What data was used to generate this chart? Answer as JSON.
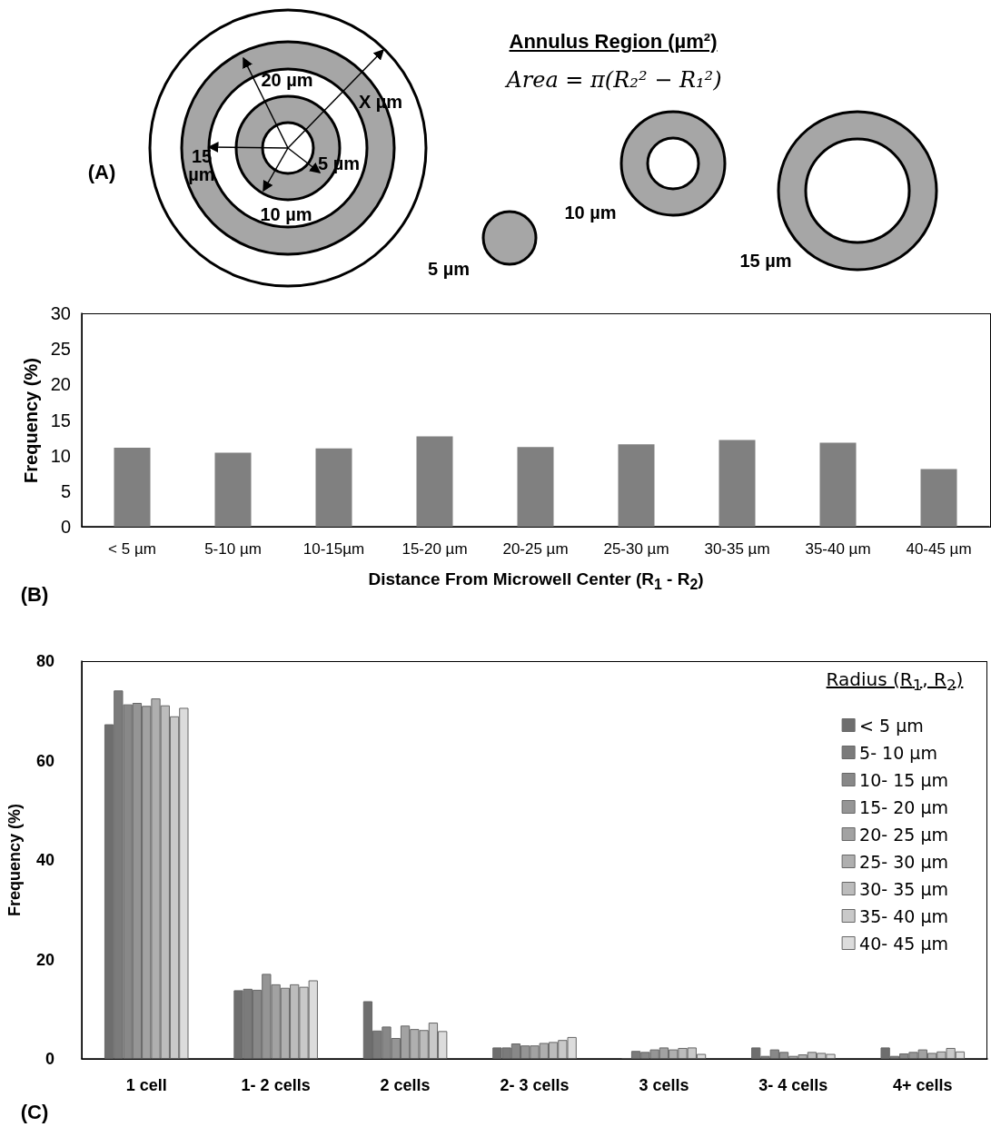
{
  "chart_data": [
    {
      "type": "other",
      "title": "Annulus Region (µm²)",
      "annotations": [
        "(A)",
        "Area = π(R₂² − R₁²)",
        "20 µm",
        "X µm",
        "15 µm",
        "5 µm",
        "10 µm",
        "5 µm",
        "10 µm",
        "15 µm"
      ]
    },
    {
      "type": "bar",
      "categories": [
        "< 5 µm",
        "5-10 µm",
        "10-15µm",
        "15-20 µm",
        "20-25 µm",
        "25-30 µm",
        "30-35 µm",
        "35-40 µm",
        "40-45 µm"
      ],
      "values": [
        11.1,
        10.4,
        11.0,
        12.7,
        11.2,
        11.6,
        12.2,
        11.8,
        8.1
      ],
      "color": "#808080",
      "xlabel": "Distance From Microwell Center (R$_{1}$ - R$_{2}$)",
      "ylabel": "Frequency (%)",
      "ylim": [
        0,
        30
      ],
      "yticks": [
        0,
        5,
        10,
        15,
        20,
        25,
        30
      ],
      "annotations": [
        "(B)"
      ]
    },
    {
      "type": "bar",
      "categories": [
        "1 cell",
        "1- 2 cells",
        "2 cells",
        "2- 3 cells",
        "3 cells",
        "3- 4 cells",
        "4+ cells"
      ],
      "ylabel": "Frequency (%)",
      "ylim": [
        0,
        80
      ],
      "yticks": [
        0,
        20,
        40,
        60,
        80
      ],
      "legend": "top right",
      "legend_title": "Radius (R$_{1}$, R$_{2}$)",
      "annotations": [
        "(C)"
      ],
      "series": [
        {
          "name": "< 5 µm",
          "color": "#6e6e6e",
          "values": [
            67.3,
            13.8,
            11.6,
            2.3,
            0,
            2.3,
            2.3
          ]
        },
        {
          "name": "5- 10 µm",
          "color": "#7b7b7b",
          "values": [
            74.1,
            14.1,
            5.7,
            2.3,
            1.6,
            0.6,
            0.6
          ]
        },
        {
          "name": "10- 15 µm",
          "color": "#888888",
          "values": [
            71.3,
            13.9,
            6.5,
            3.1,
            1.4,
            1.9,
            1.1
          ]
        },
        {
          "name": "15- 20 µm",
          "color": "#959595",
          "values": [
            71.6,
            17.1,
            4.2,
            2.7,
            1.9,
            1.4,
            1.4
          ]
        },
        {
          "name": "20- 25 µm",
          "color": "#a2a2a2",
          "values": [
            71.0,
            15.0,
            6.7,
            2.7,
            2.3,
            0.6,
            1.9
          ]
        },
        {
          "name": "25- 30 µm",
          "color": "#afafaf",
          "values": [
            72.5,
            14.3,
            6.0,
            3.2,
            1.9,
            0.9,
            1.2
          ]
        },
        {
          "name": "30- 35 µm",
          "color": "#bcbcbc",
          "values": [
            71.1,
            15.0,
            5.8,
            3.4,
            2.2,
            1.4,
            1.5
          ]
        },
        {
          "name": "35- 40 µm",
          "color": "#c9c9c9",
          "values": [
            68.9,
            14.5,
            7.3,
            3.8,
            2.3,
            1.2,
            2.2
          ]
        },
        {
          "name": "40- 45 µm",
          "color": "#dcdcdc",
          "values": [
            70.6,
            15.8,
            5.6,
            4.4,
            1.0,
            1.0,
            1.5
          ]
        }
      ]
    }
  ]
}
